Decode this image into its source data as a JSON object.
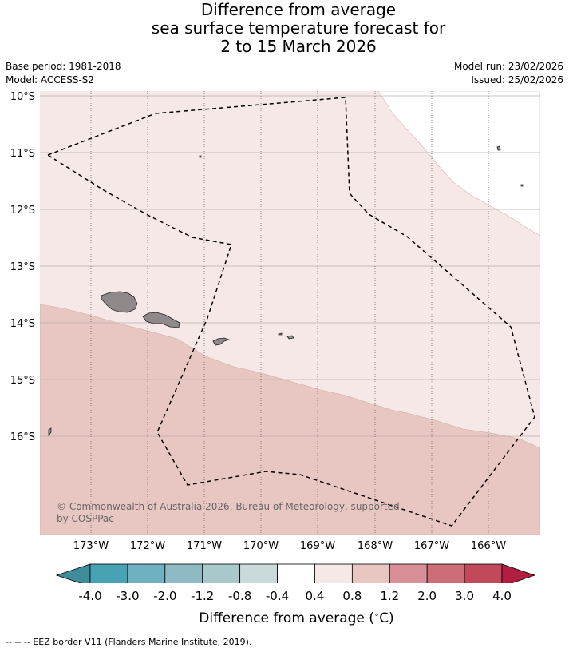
{
  "title": {
    "line1": "Difference from average",
    "line2": "sea surface temperature forecast for",
    "line3": "2 to 15 March 2026"
  },
  "meta": {
    "base_period": "Base period: 1981-2018",
    "model": "Model: ACCESS-S2",
    "model_run": "Model run: 23/02/2026",
    "issued": "Issued: 25/02/2026"
  },
  "map": {
    "lat_labels": [
      "10°S",
      "11°S",
      "12°S",
      "13°S",
      "14°S",
      "15°S",
      "16°S"
    ],
    "lon_labels": [
      "173°W",
      "172°W",
      "171°W",
      "170°W",
      "169°W",
      "168°W",
      "167°W",
      "166°W"
    ],
    "copyright_line1": "© Commonwealth of Australia 2026, Bureau of Meteorology, supported",
    "copyright_line2": "by COSPPac",
    "colors": {
      "band_0_4_0_8": "#f5e8e6",
      "band_0_8_1_2": "#e8c7c2",
      "land": "#8f8a89",
      "ocean_blank": "#ffffff"
    }
  },
  "colorbar": {
    "labels": [
      "-4.0",
      "-3.0",
      "-2.0",
      "-1.2",
      "-0.8",
      "-0.4",
      "0.4",
      "0.8",
      "1.2",
      "2.0",
      "3.0",
      "4.0"
    ],
    "colors": [
      "#3f8d9b",
      "#47a2b3",
      "#6fb1c0",
      "#8fbac4",
      "#a8c8cc",
      "#cad9d9",
      "#ffffff",
      "#f5e8e6",
      "#e8c7c2",
      "#d98f97",
      "#cc6d78",
      "#c04a5a",
      "#b11e40"
    ],
    "title": "Difference from average (",
    "unit_degree": "∘",
    "unit_c": "C)"
  },
  "footer": "--  --  -- EEZ border V11 (Flanders Marine Institute, 2019)."
}
